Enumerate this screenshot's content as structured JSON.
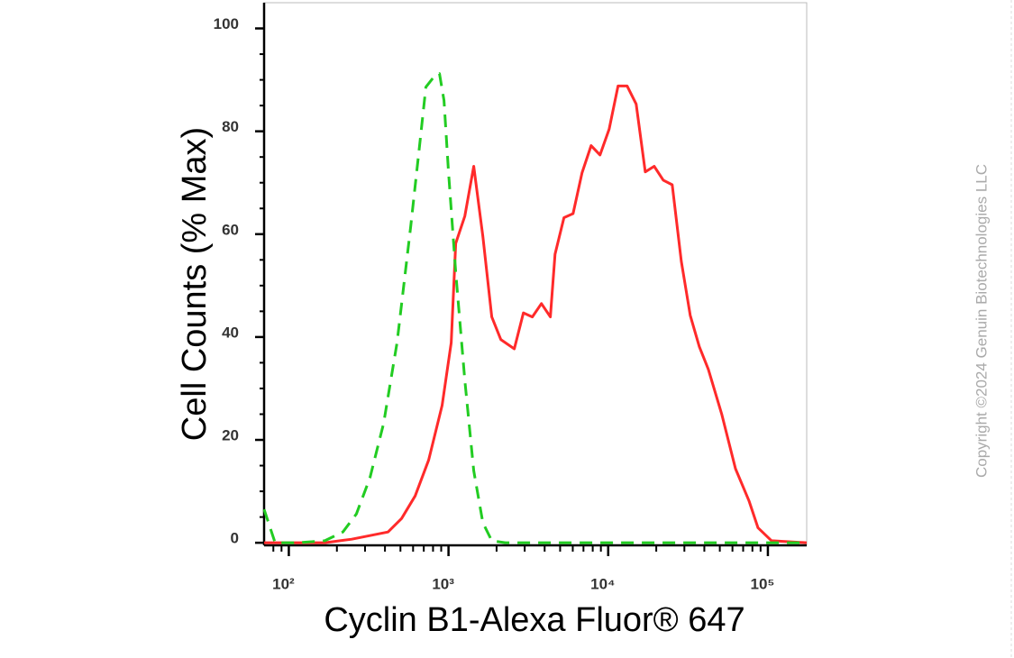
{
  "chart_data": {
    "type": "line",
    "xlabel": "Cyclin B1-Alexa Fluor® 647",
    "ylabel": "Cell Counts (% Max)",
    "watermark": "Copyright ©2024 Genuin Biotechnologies LLC",
    "xscale": "log",
    "xlim": [
      70,
      175000
    ],
    "ylim": [
      -0.5,
      105
    ],
    "xticks": [
      {
        "value": 100,
        "label": "10²"
      },
      {
        "value": 1000,
        "label": "10³"
      },
      {
        "value": 10000,
        "label": "10⁴"
      },
      {
        "value": 100000,
        "label": "10⁵"
      }
    ],
    "xminorticks": [
      80,
      90,
      200,
      300,
      400,
      500,
      600,
      700,
      800,
      900,
      2000,
      3000,
      4000,
      5000,
      6000,
      7000,
      8000,
      9000,
      20000,
      30000,
      40000,
      50000,
      60000,
      70000,
      80000,
      90000
    ],
    "yticks": [
      0,
      20,
      40,
      60,
      80,
      100
    ],
    "yminorticks": [
      5,
      10,
      15,
      25,
      30,
      35,
      45,
      50,
      55,
      65,
      70,
      75,
      85,
      90,
      95
    ],
    "series": [
      {
        "color": "#ff2a2a",
        "dashed": false,
        "x": [
          70,
          114,
          168,
          248,
          322,
          418,
          508,
          618,
          751,
          912,
          1040,
          1109,
          1265,
          1439,
          1641,
          1866,
          2128,
          2582,
          2944,
          3350,
          3819,
          4345,
          4645,
          5284,
          6026,
          6855,
          7816,
          8892,
          10140,
          11530,
          13150,
          14960,
          17060,
          19410,
          22130,
          25180,
          28710,
          32660,
          37240,
          42360,
          51520,
          62660,
          76030,
          86700,
          105400,
          175000
        ],
        "values": [
          0,
          0,
          0,
          0.7,
          1.4,
          2.1,
          4.7,
          9.1,
          16.1,
          26.7,
          38.9,
          58.2,
          63.5,
          73.2,
          59.6,
          43.9,
          39.5,
          37.7,
          44.7,
          43.9,
          46.5,
          43.9,
          56.1,
          63.2,
          64,
          71.9,
          77.2,
          75.4,
          80.4,
          88.8,
          88.8,
          85.3,
          72.1,
          73.2,
          70.5,
          69.6,
          54.7,
          44.2,
          38.1,
          33.7,
          24.9,
          14.4,
          8.2,
          2.9,
          0.4,
          0
        ]
      },
      {
        "color": "#22cc22",
        "dashed": true,
        "x": [
          70,
          82,
          114,
          168,
          218,
          265,
          322,
          392,
          476,
          579,
          659,
          722,
          802,
          878,
          937,
          1000,
          1109,
          1265,
          1439,
          1641,
          1866,
          2270,
          175000
        ],
        "values": [
          6.5,
          0,
          0,
          0.4,
          2.1,
          5.6,
          12.6,
          23.2,
          38.9,
          61.4,
          77.2,
          88.6,
          90.4,
          91.2,
          86.0,
          72.1,
          52.6,
          31.6,
          14.0,
          3.9,
          0.4,
          0,
          0
        ]
      }
    ]
  }
}
